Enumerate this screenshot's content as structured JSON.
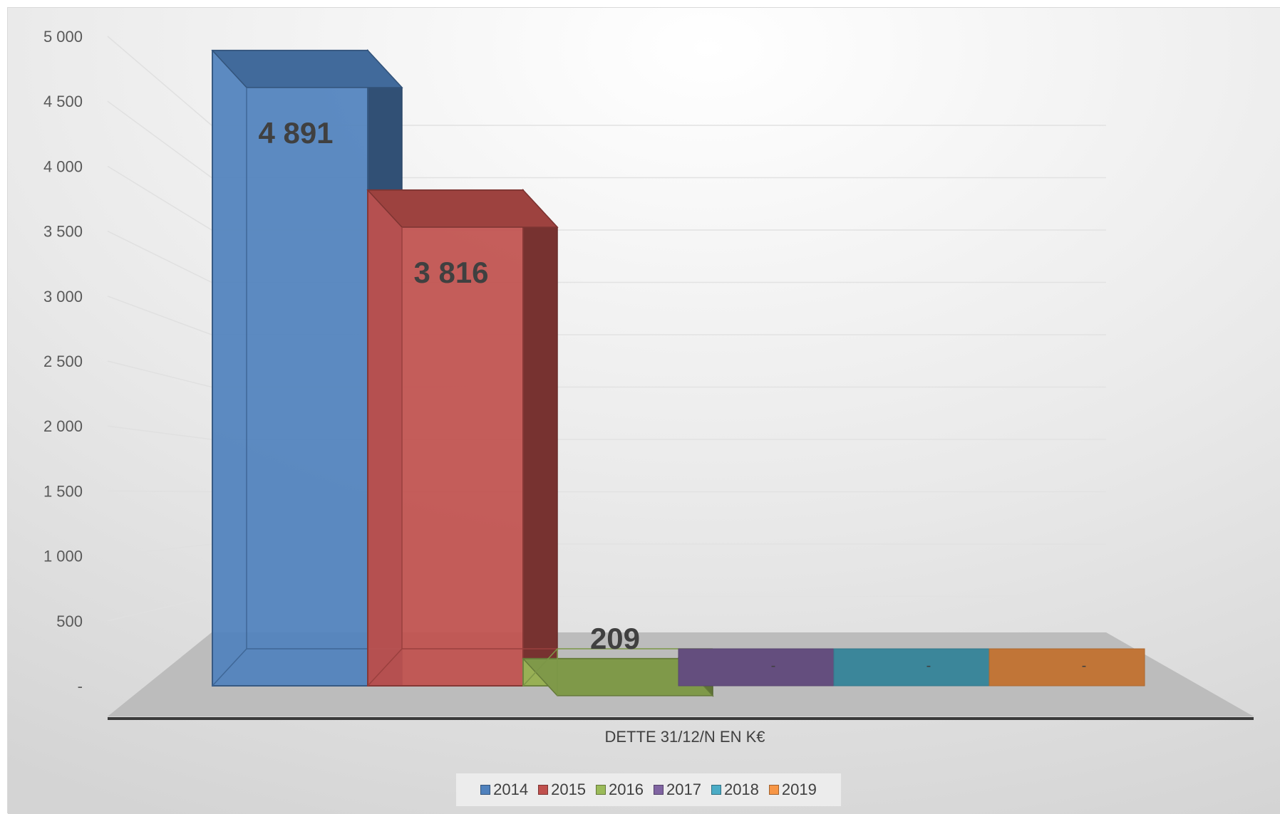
{
  "chart_data": {
    "type": "bar",
    "categories": [
      "DETTE 31/12/N EN K€"
    ],
    "series": [
      {
        "name": "2014",
        "values": [
          4891
        ],
        "label": "4 891",
        "color": "#4F81BD"
      },
      {
        "name": "2015",
        "values": [
          3816
        ],
        "label": "3 816",
        "color": "#C0504D"
      },
      {
        "name": "2016",
        "values": [
          209
        ],
        "label": "209",
        "color": "#9BBB59"
      },
      {
        "name": "2017",
        "values": [
          0
        ],
        "label": "-",
        "color": "#8064A2"
      },
      {
        "name": "2018",
        "values": [
          0
        ],
        "label": "-",
        "color": "#4BACC6"
      },
      {
        "name": "2019",
        "values": [
          0
        ],
        "label": "-",
        "color": "#F79646"
      }
    ],
    "y_ticks": [
      "-",
      "500",
      "1 000",
      "1 500",
      "2 000",
      "2 500",
      "3 000",
      "3 500",
      "4 000",
      "4 500",
      "5 000"
    ],
    "ylim": [
      0,
      5000
    ],
    "xlabel": "DETTE 31/12/N EN K€",
    "ylabel": "",
    "grid": true,
    "legend_position": "bottom",
    "style": "3d-column"
  }
}
